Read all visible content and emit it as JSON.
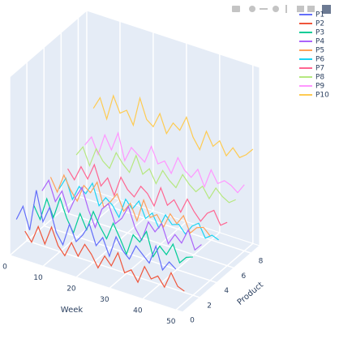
{
  "chart_data": {
    "type": "line3d",
    "x_label": "Week",
    "y_label": "Product",
    "xlim": [
      0,
      52
    ],
    "ylim": [
      0,
      9
    ],
    "zlim": [
      0,
      140
    ],
    "xticks": [
      0,
      10,
      20,
      30,
      40,
      50
    ],
    "yticks": [
      0,
      2,
      4,
      6,
      8
    ],
    "x": [
      2,
      4,
      6,
      8,
      10,
      12,
      14,
      16,
      18,
      20,
      22,
      24,
      26,
      28,
      30,
      32,
      34,
      36,
      38,
      40,
      42,
      44,
      46,
      48,
      50
    ],
    "series": [
      {
        "name": "P1",
        "product": 0,
        "color": "#636efa",
        "values": [
          30,
          42,
          25,
          58,
          35,
          48,
          30,
          22,
          40,
          28,
          35,
          45,
          30,
          38,
          25,
          42,
          33,
          28,
          40,
          35,
          30,
          45,
          28,
          36,
          32
        ]
      },
      {
        "name": "P2",
        "product": 1,
        "color": "#ef553b",
        "values": [
          15,
          8,
          22,
          10,
          25,
          12,
          6,
          18,
          9,
          20,
          14,
          5,
          16,
          10,
          22,
          8,
          12,
          4,
          18,
          10,
          14,
          7,
          20,
          11,
          9
        ]
      },
      {
        "name": "P3",
        "product": 2,
        "color": "#00cc96",
        "values": [
          30,
          20,
          38,
          25,
          42,
          28,
          18,
          35,
          24,
          40,
          30,
          22,
          36,
          26,
          15,
          32,
          28,
          38,
          20,
          30,
          25,
          35,
          22,
          28,
          30
        ]
      },
      {
        "name": "P4",
        "product": 3,
        "color": "#ab63fa",
        "values": [
          35,
          45,
          30,
          40,
          25,
          38,
          48,
          32,
          20,
          36,
          42,
          28,
          34,
          45,
          30,
          22,
          38,
          32,
          40,
          26,
          35,
          30,
          42,
          28,
          34
        ]
      },
      {
        "name": "P5",
        "product": 4,
        "color": "#ffa15a",
        "values": [
          40,
          30,
          45,
          35,
          28,
          42,
          38,
          48,
          30,
          36,
          44,
          32,
          40,
          28,
          46,
          34,
          38,
          30,
          42,
          36,
          44,
          32,
          38,
          40,
          35
        ]
      },
      {
        "name": "P6",
        "product": 5,
        "color": "#19d3f3",
        "values": [
          25,
          35,
          20,
          32,
          28,
          38,
          22,
          30,
          26,
          18,
          34,
          28,
          36,
          24,
          30,
          20,
          32,
          26,
          28,
          22,
          30,
          34,
          24,
          28,
          26
        ]
      },
      {
        "name": "P7",
        "product": 6,
        "color": "#ff6692",
        "values": [
          35,
          28,
          40,
          32,
          45,
          30,
          38,
          26,
          42,
          34,
          30,
          40,
          36,
          28,
          44,
          32,
          38,
          30,
          42,
          34,
          28,
          36,
          40,
          30,
          34
        ]
      },
      {
        "name": "P8",
        "product": 7,
        "color": "#b6e880",
        "values": [
          40,
          48,
          35,
          50,
          42,
          38,
          52,
          45,
          40,
          55,
          42,
          48,
          38,
          50,
          44,
          40,
          52,
          46,
          42,
          48,
          40,
          50,
          45,
          42,
          46
        ]
      },
      {
        "name": "P9",
        "product": 8,
        "color": "#ff97ff",
        "values": [
          42,
          50,
          38,
          55,
          45,
          60,
          40,
          52,
          48,
          44,
          58,
          46,
          50,
          42,
          56,
          48,
          44,
          52,
          40,
          55,
          46,
          50,
          48,
          44,
          52
        ]
      },
      {
        "name": "P10",
        "product": 9,
        "color": "#fecb52",
        "values": [
          65,
          75,
          60,
          80,
          68,
          72,
          62,
          85,
          70,
          66,
          78,
          64,
          74,
          70,
          82,
          68,
          60,
          76,
          66,
          72,
          62,
          70,
          64,
          68,
          74
        ]
      }
    ]
  }
}
